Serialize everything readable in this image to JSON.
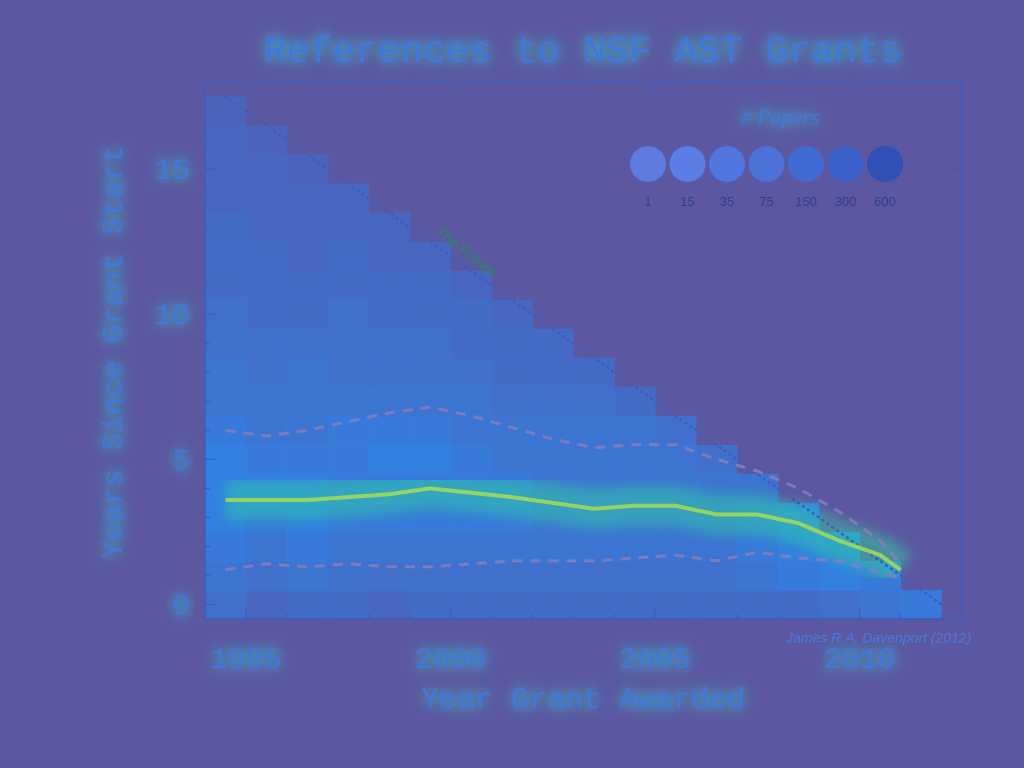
{
  "chart_data": {
    "type": "heatmap",
    "title": "References to NSF AST Grants",
    "xlabel": "Year Grant Awarded",
    "ylabel": "Years Since Grant Start",
    "xlim": [
      1994,
      2012.5
    ],
    "ylim": [
      -0.5,
      18
    ],
    "xticks": [
      1995,
      2000,
      2005,
      2010
    ],
    "yticks": [
      0,
      5,
      10,
      15
    ],
    "legend": {
      "title": "# Papers",
      "position": "top-right",
      "entries": [
        "1",
        "15",
        "35",
        "75",
        "150",
        "300",
        "600"
      ],
      "colors": [
        "#5d80e8",
        "#5a82ee",
        "#4f7ae6",
        "#4a76e0",
        "#3f6ed8",
        "#3562cc",
        "#2a50b8"
      ]
    },
    "annotations": [
      {
        "text": "The Future",
        "x": 1999.6,
        "y": 12.8
      },
      {
        "text": "James R.A. Davenport (2012)",
        "x": 2008.2,
        "y": -0.9
      }
    ],
    "future_line": {
      "x": [
        1994.5,
        2012
      ],
      "y": [
        17.5,
        0
      ]
    },
    "series": [
      {
        "style": "solid",
        "x": [
          1994.5,
          1995.5,
          1996.5,
          1997.5,
          1998.5,
          1999.5,
          2000.5,
          2001.5,
          2002.5,
          2003.5,
          2004.5,
          2005.5,
          2006.5,
          2007.5,
          2008.5,
          2009.5,
          2010.5,
          2011
        ],
        "y": [
          3.6,
          3.6,
          3.6,
          3.7,
          3.8,
          4.0,
          3.85,
          3.7,
          3.5,
          3.3,
          3.4,
          3.4,
          3.1,
          3.1,
          2.8,
          2.2,
          1.7,
          1.2
        ]
      },
      {
        "style": "dashed",
        "x": [
          1994.5,
          1995.5,
          1996.5,
          1997.5,
          1998.5,
          1999.5,
          2000.5,
          2001.5,
          2002.5,
          2003.5,
          2004.5,
          2005.5,
          2006.5,
          2007.5,
          2008.5,
          2009.5,
          2010.5,
          2011
        ],
        "y": [
          6.0,
          5.8,
          6.0,
          6.3,
          6.6,
          6.8,
          6.5,
          6.1,
          5.7,
          5.4,
          5.5,
          5.5,
          5.0,
          4.6,
          4.0,
          3.2,
          2.2,
          1.4
        ]
      },
      {
        "style": "dashed",
        "x": [
          1994.5,
          1995.5,
          1996.5,
          1997.5,
          1998.5,
          1999.5,
          2000.5,
          2001.5,
          2002.5,
          2003.5,
          2004.5,
          2005.5,
          2006.5,
          2007.5,
          2008.5,
          2009.5,
          2010.5,
          2011
        ],
        "y": [
          1.2,
          1.4,
          1.3,
          1.4,
          1.3,
          1.3,
          1.4,
          1.5,
          1.5,
          1.5,
          1.6,
          1.7,
          1.5,
          1.8,
          1.6,
          1.5,
          1.1,
          0.9
        ]
      }
    ],
    "heatmap_intensity_rows": [
      [
        0.6,
        0.4,
        0.5,
        0.5,
        0.4,
        0.5,
        0.5,
        0.5,
        0.5,
        0.5,
        0.5,
        0.5,
        0.5,
        0.5,
        0.5,
        0.6,
        0.7,
        0.8
      ],
      [
        0.7,
        0.6,
        0.7,
        0.6,
        0.6,
        0.6,
        0.6,
        0.6,
        0.6,
        0.6,
        0.6,
        0.6,
        0.6,
        0.7,
        0.8,
        0.9,
        0.8,
        0
      ],
      [
        0.8,
        0.7,
        0.8,
        0.7,
        0.7,
        0.7,
        0.7,
        0.7,
        0.7,
        0.7,
        0.7,
        0.7,
        0.7,
        0.8,
        0.9,
        0.9,
        0,
        0
      ],
      [
        0.9,
        0.8,
        0.9,
        0.8,
        0.8,
        0.8,
        0.8,
        0.8,
        0.7,
        0.7,
        0.7,
        0.7,
        0.7,
        0.8,
        0.9,
        0,
        0,
        0
      ],
      [
        0.9,
        0.9,
        0.9,
        0.8,
        0.8,
        0.8,
        0.8,
        0.8,
        0.7,
        0.7,
        0.7,
        0.7,
        0.7,
        0.7,
        0,
        0,
        0,
        0
      ],
      [
        0.9,
        0.8,
        0.8,
        0.8,
        0.9,
        0.9,
        0.8,
        0.7,
        0.7,
        0.7,
        0.7,
        0.7,
        0.6,
        0,
        0,
        0,
        0,
        0
      ],
      [
        0.8,
        0.7,
        0.7,
        0.8,
        0.8,
        0.8,
        0.7,
        0.7,
        0.7,
        0.7,
        0.7,
        0.6,
        0,
        0,
        0,
        0,
        0,
        0
      ],
      [
        0.7,
        0.7,
        0.7,
        0.7,
        0.7,
        0.7,
        0.7,
        0.6,
        0.6,
        0.6,
        0.5,
        0,
        0,
        0,
        0,
        0,
        0,
        0
      ],
      [
        0.7,
        0.6,
        0.7,
        0.6,
        0.6,
        0.6,
        0.6,
        0.5,
        0.5,
        0.5,
        0,
        0,
        0,
        0,
        0,
        0,
        0,
        0
      ],
      [
        0.6,
        0.6,
        0.6,
        0.6,
        0.6,
        0.6,
        0.5,
        0.5,
        0.5,
        0,
        0,
        0,
        0,
        0,
        0,
        0,
        0,
        0
      ],
      [
        0.6,
        0.5,
        0.5,
        0.6,
        0.5,
        0.5,
        0.5,
        0.4,
        0,
        0,
        0,
        0,
        0,
        0,
        0,
        0,
        0,
        0
      ],
      [
        0.5,
        0.5,
        0.5,
        0.5,
        0.5,
        0.5,
        0.4,
        0,
        0,
        0,
        0,
        0,
        0,
        0,
        0,
        0,
        0,
        0
      ],
      [
        0.5,
        0.5,
        0.4,
        0.5,
        0.4,
        0.4,
        0,
        0,
        0,
        0,
        0,
        0,
        0,
        0,
        0,
        0,
        0,
        0
      ],
      [
        0.5,
        0.4,
        0.4,
        0.4,
        0.4,
        0,
        0,
        0,
        0,
        0,
        0,
        0,
        0,
        0,
        0,
        0,
        0,
        0
      ],
      [
        0.4,
        0.4,
        0.4,
        0.4,
        0,
        0,
        0,
        0,
        0,
        0,
        0,
        0,
        0,
        0,
        0,
        0,
        0,
        0
      ],
      [
        0.4,
        0.4,
        0.3,
        0,
        0,
        0,
        0,
        0,
        0,
        0,
        0,
        0,
        0,
        0,
        0,
        0,
        0,
        0
      ],
      [
        0.4,
        0.3,
        0,
        0,
        0,
        0,
        0,
        0,
        0,
        0,
        0,
        0,
        0,
        0,
        0,
        0,
        0,
        0
      ],
      [
        0.3,
        0,
        0,
        0,
        0,
        0,
        0,
        0,
        0,
        0,
        0,
        0,
        0,
        0,
        0,
        0,
        0,
        0
      ]
    ]
  }
}
